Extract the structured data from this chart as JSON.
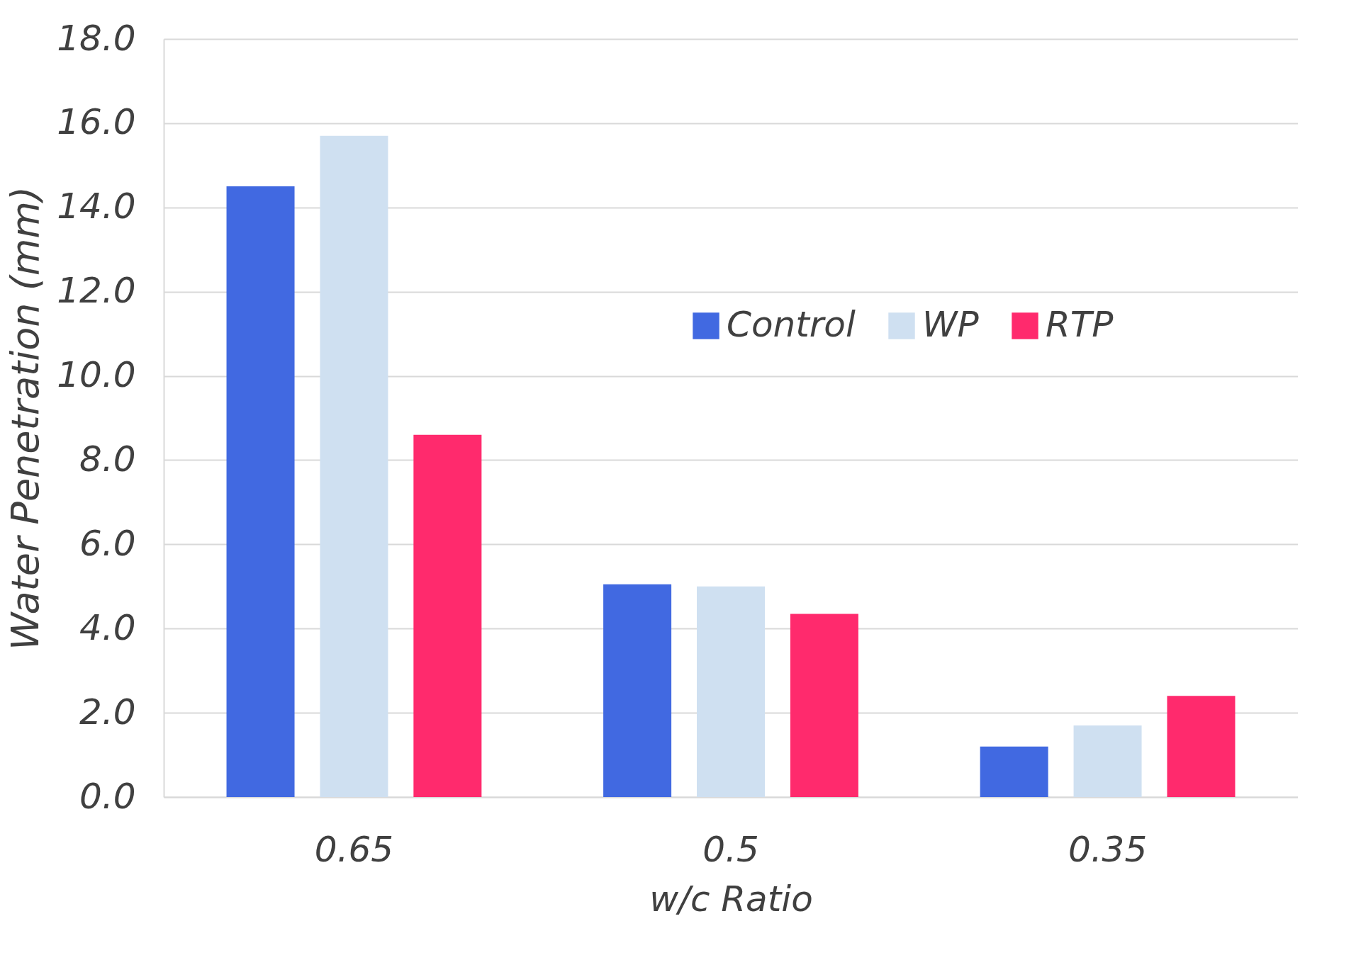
{
  "chart_data": {
    "type": "bar",
    "xlabel": "w/c Ratio",
    "ylabel": "Water Penetration (mm)",
    "categories": [
      "0.65",
      "0.5",
      "0.35"
    ],
    "series": [
      {
        "name": "Control",
        "color": "#4169e1",
        "values": [
          14.5,
          5.05,
          1.2
        ]
      },
      {
        "name": "WP",
        "color": "#cfe0f1",
        "values": [
          15.7,
          5.0,
          1.7
        ]
      },
      {
        "name": "RTP",
        "color": "#ff2a6d",
        "values": [
          8.6,
          4.35,
          2.4
        ]
      }
    ],
    "ylim": [
      0,
      18
    ],
    "yticks": [
      {
        "value": 0,
        "label": "0.0"
      },
      {
        "value": 2,
        "label": "2.0"
      },
      {
        "value": 4,
        "label": "4.0"
      },
      {
        "value": 6,
        "label": "6.0"
      },
      {
        "value": 8,
        "label": "8.0"
      },
      {
        "value": 10,
        "label": "10.0"
      },
      {
        "value": 12,
        "label": "12.0"
      },
      {
        "value": 14,
        "label": "14.0"
      },
      {
        "value": 16,
        "label": "16.0"
      },
      {
        "value": 18,
        "label": "18.0"
      }
    ],
    "grid": "y",
    "legend": "top right"
  }
}
